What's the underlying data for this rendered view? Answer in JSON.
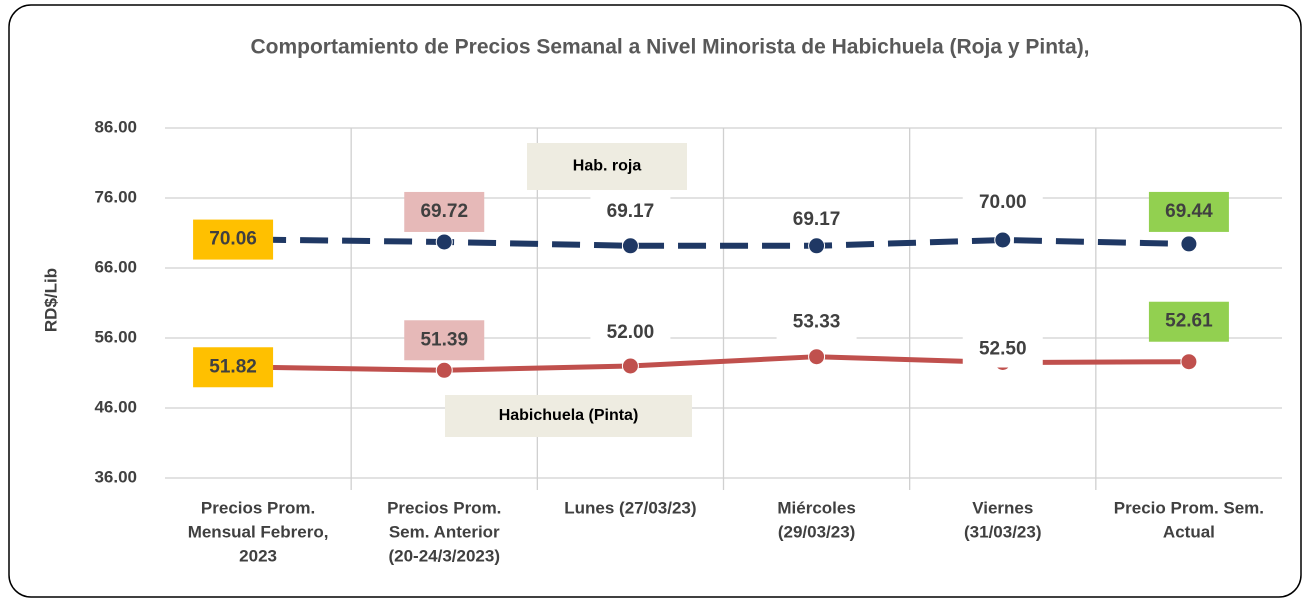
{
  "chart_data": {
    "type": "line",
    "title": "Comportamiento de Precios Semanal a Nivel Minorista de Habichuela (Roja  y Pinta),",
    "y_label": "RD$/Lib",
    "categories": [
      [
        "Precios Prom.",
        "Mensual Febrero,",
        "2023"
      ],
      [
        "Precios Prom.",
        "Sem. Anterior",
        "(20-24/3/2023)"
      ],
      [
        "Lunes  (27/03/23)"
      ],
      [
        "Miércoles",
        "(29/03/23)"
      ],
      [
        "Viernes",
        "(31/03/23)"
      ],
      [
        "Precio Prom. Sem.",
        "Actual"
      ]
    ],
    "series": [
      {
        "name": "Hab. roja",
        "color": "#1f3864",
        "dashed": true,
        "values": [
          70.06,
          69.72,
          69.17,
          69.17,
          70.0,
          69.44
        ],
        "value_labels": [
          "70.06",
          "69.72",
          "69.17",
          "69.17",
          "70.00",
          "69.44"
        ]
      },
      {
        "name": "Habichuela (Pinta)",
        "color": "#c0504d",
        "dashed": false,
        "values": [
          51.82,
          51.39,
          52.0,
          53.33,
          52.5,
          52.61
        ],
        "value_labels": [
          "51.82",
          "51.39",
          "52.00",
          "53.33",
          "52.50",
          "52.61"
        ]
      }
    ],
    "label_colors": [
      "#ffc000",
      "#e6b9b8",
      null,
      null,
      null,
      "#92d050"
    ],
    "ylim": [
      36,
      86
    ],
    "yticks": [
      {
        "value": 36,
        "label": "36.00"
      },
      {
        "value": 46,
        "label": "46.00"
      },
      {
        "value": 56,
        "label": "56.00"
      },
      {
        "value": 66,
        "label": "66.00"
      },
      {
        "value": 76,
        "label": "76.00"
      },
      {
        "value": 86,
        "label": "86.00"
      }
    ],
    "grid": true
  }
}
